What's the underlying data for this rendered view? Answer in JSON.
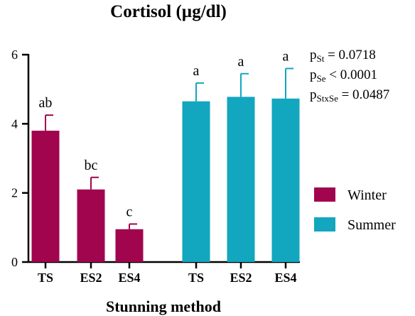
{
  "chart_data": {
    "type": "bar",
    "title": "Cortisol (µg/dl)",
    "xlabel": "Stunning method",
    "ylabel": "",
    "ylim": [
      0,
      6
    ],
    "yticks": [
      0,
      2,
      4,
      6
    ],
    "grid": false,
    "legend_position": "right",
    "categories": [
      "TS",
      "ES2",
      "ES4"
    ],
    "series": [
      {
        "name": "Winter",
        "color": "#a1054d",
        "values": [
          3.8,
          2.1,
          0.95
        ],
        "errors": [
          0.45,
          0.35,
          0.15
        ],
        "letters": [
          "ab",
          "bc",
          "c"
        ]
      },
      {
        "name": "Summer",
        "color": "#12a6bf",
        "values": [
          4.65,
          4.78,
          4.73
        ],
        "errors": [
          0.53,
          0.67,
          0.87
        ],
        "letters": [
          "a",
          "a",
          "a"
        ]
      }
    ],
    "annotations": [
      {
        "main": "p",
        "sub": "St",
        "rest": " = 0.0718"
      },
      {
        "main": "p",
        "sub": "Se",
        "rest": " < 0.0001"
      },
      {
        "main": "p",
        "sub": "StxSe",
        "rest": " = 0.0487"
      }
    ]
  }
}
